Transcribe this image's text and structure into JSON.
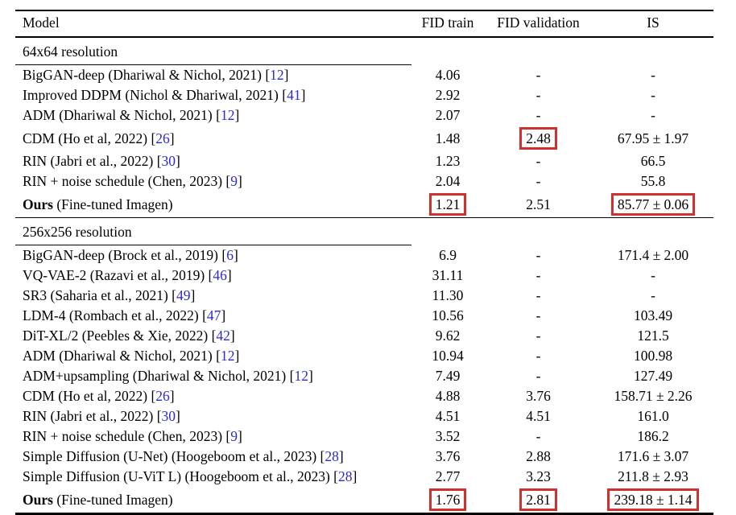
{
  "colors": {
    "highlight_box": "#cf312e",
    "citation": "#2b2bcd",
    "rule": "#000000",
    "background": "#ffffff"
  },
  "table": {
    "headers": [
      {
        "label": "Model"
      },
      {
        "label": "FID train"
      },
      {
        "label": "FID validation"
      },
      {
        "label": "IS"
      }
    ],
    "sections": [
      {
        "title": "64x64 resolution",
        "rows": [
          {
            "model": "BigGAN-deep (Dhariwal & Nichol, 2021)",
            "cite": "12",
            "fid_train": "4.06",
            "fid_validation": "-",
            "is": "-"
          },
          {
            "model": "Improved DDPM (Nichol & Dhariwal, 2021)",
            "cite": "41",
            "fid_train": "2.92",
            "fid_validation": "-",
            "is": "-"
          },
          {
            "model": "ADM (Dhariwal & Nichol, 2021)",
            "cite": "12",
            "fid_train": "2.07",
            "fid_validation": "-",
            "is": "-"
          },
          {
            "model": "CDM (Ho et al, 2022)",
            "cite": "26",
            "fid_train": "1.48",
            "fid_validation": "2.48",
            "is": "67.95 ± 1.97",
            "boxed": [
              "fid_validation"
            ]
          },
          {
            "model": "RIN (Jabri et al., 2022)",
            "cite": "30",
            "fid_train": "1.23",
            "fid_validation": "-",
            "is": "66.5"
          },
          {
            "model": "RIN + noise schedule (Chen, 2023)",
            "cite": "9",
            "fid_train": "2.04",
            "fid_validation": "-",
            "is": "55.8"
          },
          {
            "model_bold": "Ours",
            "model": " (Fine-tuned Imagen)",
            "fid_train": "1.21",
            "fid_validation": "2.51",
            "is": "85.77 ± 0.06",
            "boxed": [
              "fid_train",
              "is"
            ]
          }
        ]
      },
      {
        "title": "256x256 resolution",
        "rows": [
          {
            "model": "BigGAN-deep (Brock et al., 2019)",
            "cite": "6",
            "fid_train": "6.9",
            "fid_validation": "-",
            "is": "171.4 ± 2.00"
          },
          {
            "model": "VQ-VAE-2 (Razavi et al., 2019)",
            "cite": "46",
            "fid_train": "31.11",
            "fid_validation": "-",
            "is": "-"
          },
          {
            "model": "SR3 (Saharia et al., 2021)",
            "cite": "49",
            "fid_train": "11.30",
            "fid_validation": "-",
            "is": "-"
          },
          {
            "model": "LDM-4 (Rombach et al., 2022)",
            "cite": "47",
            "fid_train": "10.56",
            "fid_validation": "-",
            "is": "103.49"
          },
          {
            "model": "DiT-XL/2 (Peebles & Xie, 2022)",
            "cite": "42",
            "fid_train": "9.62",
            "fid_validation": "-",
            "is": "121.5"
          },
          {
            "model": "ADM (Dhariwal & Nichol, 2021)",
            "cite": "12",
            "fid_train": "10.94",
            "fid_validation": "-",
            "is": "100.98"
          },
          {
            "model": "ADM+upsampling (Dhariwal & Nichol, 2021)",
            "cite": "12",
            "fid_train": "7.49",
            "fid_validation": "-",
            "is": "127.49"
          },
          {
            "model": "CDM (Ho et al, 2022)",
            "cite": "26",
            "fid_train": "4.88",
            "fid_validation": "3.76",
            "is": "158.71 ± 2.26"
          },
          {
            "model": "RIN (Jabri et al., 2022)",
            "cite": "30",
            "fid_train": "4.51",
            "fid_validation": "4.51",
            "is": "161.0"
          },
          {
            "model": "RIN + noise schedule (Chen, 2023)",
            "cite": "9",
            "fid_train": "3.52",
            "fid_validation": "-",
            "is": "186.2"
          },
          {
            "model": "Simple Diffusion (U-Net) (Hoogeboom et al., 2023)",
            "cite": "28",
            "fid_train": "3.76",
            "fid_validation": "2.88",
            "is": "171.6 ± 3.07"
          },
          {
            "model": "Simple Diffusion (U-ViT L) (Hoogeboom et al., 2023)",
            "cite": "28",
            "fid_train": "2.77",
            "fid_validation": "3.23",
            "is": "211.8 ± 2.93"
          },
          {
            "model_bold": "Ours",
            "model": " (Fine-tuned Imagen)",
            "fid_train": "1.76",
            "fid_validation": "2.81",
            "is": "239.18 ± 1.14",
            "boxed": [
              "fid_train",
              "fid_validation",
              "is"
            ]
          }
        ]
      }
    ]
  }
}
